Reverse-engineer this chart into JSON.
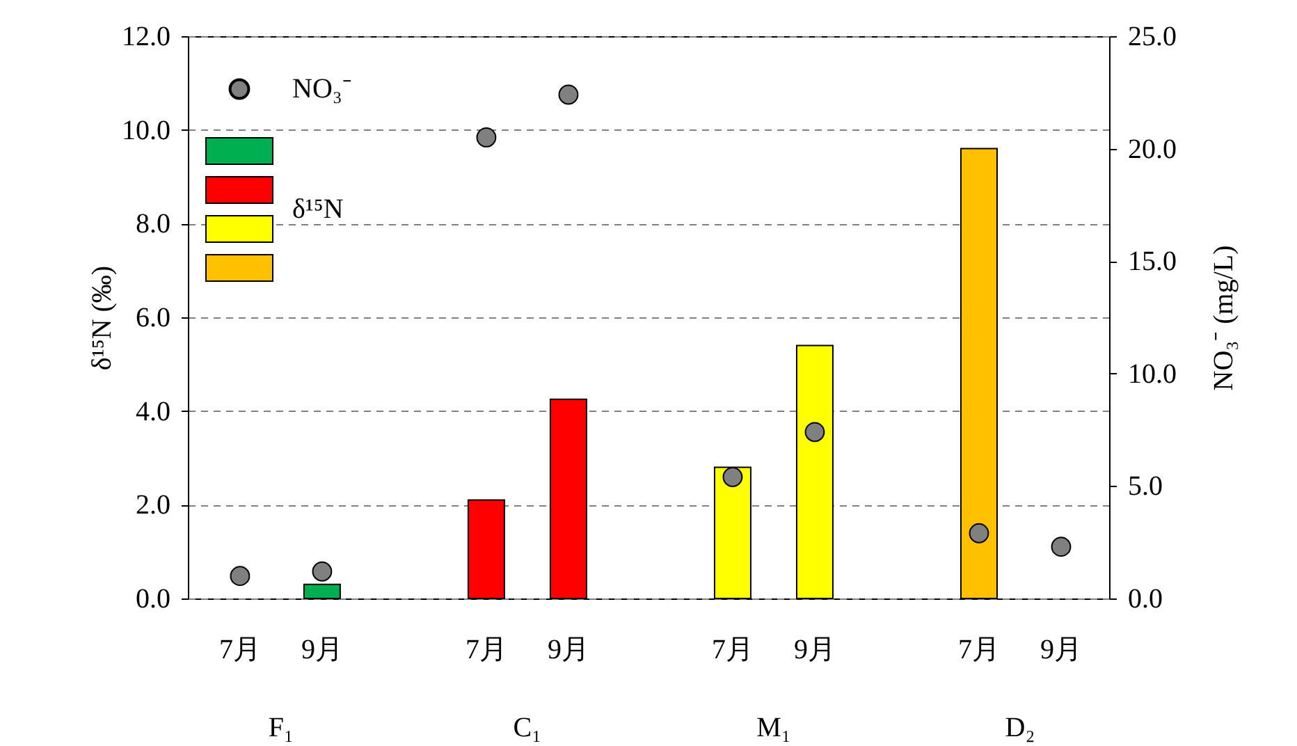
{
  "chart_data": {
    "type": "bar",
    "categories": [
      "7月",
      "9月",
      "7月",
      "9月",
      "7月",
      "9月",
      "7月",
      "9月"
    ],
    "annotations": [
      "F₁",
      "C₁",
      "M₁",
      "D₂"
    ],
    "series": [
      {
        "name": "δ¹⁵N",
        "colors": [
          "#00b050",
          "#00b050",
          "#ff0000",
          "#ff0000",
          "#ffff00",
          "#ffff00",
          "#ffc000",
          "#ffc000"
        ],
        "values": [
          null,
          0.3,
          2.1,
          4.25,
          2.8,
          5.4,
          9.6,
          null
        ]
      },
      {
        "name": "NO₃⁻",
        "type": "scatter",
        "axis": "y2",
        "color": "#808080",
        "values": [
          1.0,
          1.2,
          20.5,
          22.4,
          5.4,
          7.4,
          2.9,
          2.3
        ]
      }
    ],
    "ylabel": "δ¹⁵N (‰)",
    "y2label": "NO₃⁻ (mg/L)",
    "ylim": [
      0,
      12
    ],
    "yticks": [
      {
        "value": 0,
        "label": "0.0"
      },
      {
        "value": 2,
        "label": "2.0"
      },
      {
        "value": 4,
        "label": "4.0"
      },
      {
        "value": 6,
        "label": "6.0"
      },
      {
        "value": 8,
        "label": "8.0"
      },
      {
        "value": 10,
        "label": "10.0"
      },
      {
        "value": 12,
        "label": "12.0"
      }
    ],
    "y2lim": [
      0,
      25
    ],
    "y2ticks": [
      {
        "value": 0,
        "label": "0.0"
      },
      {
        "value": 5,
        "label": "5.0"
      },
      {
        "value": 10,
        "label": "10.0"
      },
      {
        "value": 15,
        "label": "15.0"
      },
      {
        "value": 20,
        "label": "20.0"
      },
      {
        "value": 25,
        "label": "25.0"
      }
    ],
    "grid": "y",
    "legend": "top left",
    "marker": "circle"
  }
}
